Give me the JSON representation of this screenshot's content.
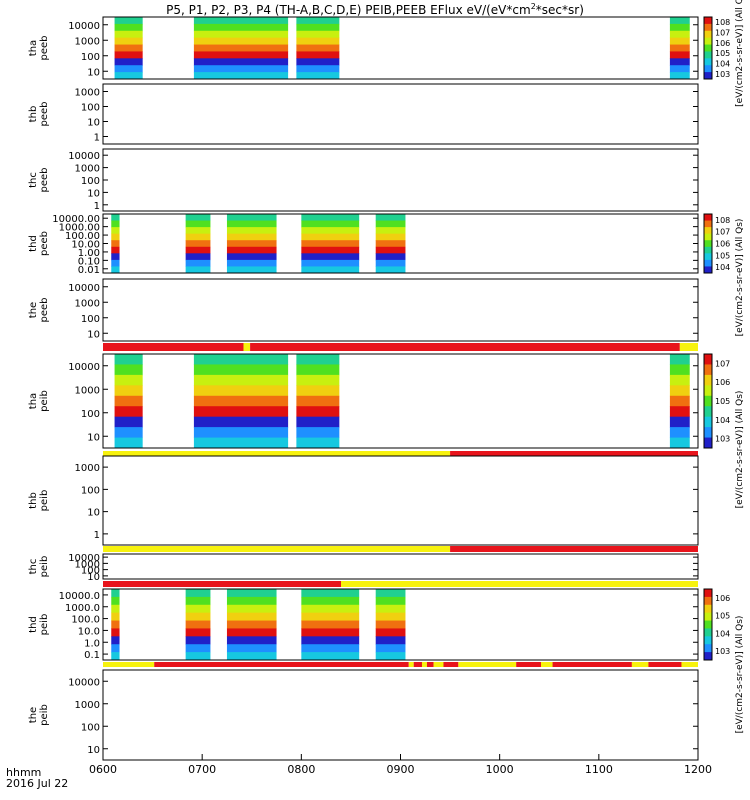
{
  "title_parts": {
    "a": "P5, P1, P2, P3, P4 (TH-A,B,C,D,E) PEIB,PEEB EFlux eV/(eV*cm",
    "b": "2",
    "c": "*sec*sr)"
  },
  "time_axis": {
    "label": "hhmm",
    "date": "2016 Jul 22",
    "ticks": [
      "0600",
      "0700",
      "0800",
      "0900",
      "1000",
      "1100",
      "1200"
    ]
  },
  "colorbar_labels": {
    "cb1": "[eV/(cm2-s-sr-eV)] (All Qs)",
    "cb2": "[eV/(cm2-s-sr-eV)] (All Qs)",
    "cb3": "[eV/(cm2-s-sr-eV)] (All Qs)",
    "cb4": "[eV/(cm2-s-sr-eV)] (All Qs)"
  },
  "colors": {
    "flag_red": "#e8141c",
    "flag_yellow": "#f7f20e",
    "trace": "#000000"
  },
  "chart_data": [
    {
      "type": "heatmap",
      "probe": "tha",
      "species": "peeb",
      "ylabel": [
        "tha",
        "peeb"
      ],
      "yscale": "log",
      "yticks": [
        "10",
        "100",
        "1000",
        "10000"
      ],
      "data_intervals_hhmm": [
        [
          "0607",
          "0624"
        ],
        [
          "0655",
          "0752"
        ],
        [
          "0757",
          "0823"
        ],
        [
          "1143",
          "1155"
        ]
      ],
      "colorbar": [
        "103",
        "104",
        "105",
        "106",
        "107",
        "108"
      ]
    },
    {
      "type": "heatmap",
      "probe": "thb",
      "species": "peeb",
      "ylabel": [
        "thb",
        "peeb"
      ],
      "yscale": "log",
      "yticks": [
        "1",
        "10",
        "100",
        "1000"
      ],
      "data_intervals_hhmm": []
    },
    {
      "type": "heatmap",
      "probe": "thc",
      "species": "peeb",
      "ylabel": [
        "thc",
        "peeb"
      ],
      "yscale": "log",
      "yticks": [
        "1",
        "10",
        "100",
        "1000",
        "10000"
      ],
      "data_intervals_hhmm": []
    },
    {
      "type": "heatmap",
      "probe": "thd",
      "species": "peeb",
      "ylabel": [
        "thd",
        "peeb"
      ],
      "yscale": "log",
      "yticks": [
        "0.01",
        "0.10",
        "1.00",
        "10.00",
        "100.00",
        "1000.00",
        "10000.00"
      ],
      "data_intervals_hhmm": [
        [
          "0605",
          "0610"
        ],
        [
          "0650",
          "0705"
        ],
        [
          "0715",
          "0745"
        ],
        [
          "0800",
          "0835"
        ],
        [
          "0845",
          "0903"
        ]
      ],
      "colorbar": [
        "104",
        "105",
        "106",
        "107",
        "108"
      ]
    },
    {
      "type": "heatmap",
      "probe": "the",
      "species": "peeb",
      "ylabel": [
        "the",
        "peeb"
      ],
      "yscale": "log",
      "yticks": [
        "10",
        "100",
        "1000",
        "10000"
      ],
      "data_intervals_hhmm": []
    },
    {
      "type": "heatmap",
      "probe": "tha",
      "species": "peib",
      "ylabel": [
        "tha",
        "peib"
      ],
      "yscale": "log",
      "yticks": [
        "10",
        "100",
        "1000",
        "10000"
      ],
      "data_intervals_hhmm": [
        [
          "0607",
          "0624"
        ],
        [
          "0655",
          "0752"
        ],
        [
          "0757",
          "0823"
        ],
        [
          "1143",
          "1155"
        ]
      ],
      "colorbar": [
        "103",
        "104",
        "105",
        "106",
        "107"
      ]
    },
    {
      "type": "heatmap",
      "probe": "thb",
      "species": "peib",
      "ylabel": [
        "thb",
        "peib"
      ],
      "yscale": "log",
      "yticks": [
        "1",
        "10",
        "100",
        "1000"
      ],
      "data_intervals_hhmm": []
    },
    {
      "type": "heatmap",
      "probe": "thc",
      "species": "peib",
      "ylabel": [
        "thc",
        "peib"
      ],
      "yscale": "log",
      "yticks": [
        "10",
        "100",
        "1000",
        "10000"
      ],
      "data_intervals_hhmm": []
    },
    {
      "type": "heatmap",
      "probe": "thd",
      "species": "peib",
      "ylabel": [
        "thd",
        "peib"
      ],
      "yscale": "log",
      "yticks": [
        "0.1",
        "1.0",
        "10.0",
        "100.0",
        "1000.0",
        "10000.0"
      ],
      "data_intervals_hhmm": [
        [
          "0605",
          "0610"
        ],
        [
          "0650",
          "0705"
        ],
        [
          "0715",
          "0745"
        ],
        [
          "0800",
          "0835"
        ],
        [
          "0845",
          "0903"
        ]
      ],
      "colorbar": [
        "103",
        "104",
        "105",
        "106"
      ]
    },
    {
      "type": "heatmap",
      "probe": "the",
      "species": "peib",
      "ylabel": [
        "the",
        "peib"
      ],
      "yscale": "log",
      "yticks": [
        "10",
        "100",
        "1000",
        "10000"
      ],
      "data_intervals_hhmm": []
    }
  ]
}
